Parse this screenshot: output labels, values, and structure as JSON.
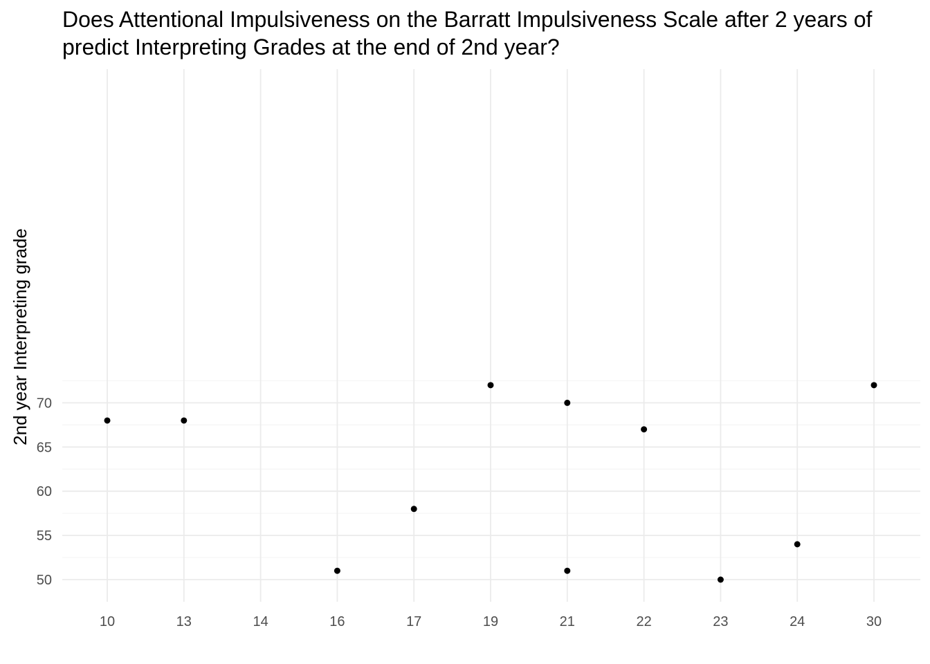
{
  "chart_data": {
    "type": "scatter",
    "title_lines": [
      "Does Attentional Impulsiveness on the Barratt Impulsiveness Scale after 2 years of",
      "predict Interpreting Grades at the end of 2nd year?"
    ],
    "xlabel": "",
    "ylabel": "2nd year Interpreting grade",
    "x_axis_kind": "categorical",
    "categories": [
      "10",
      "13",
      "14",
      "16",
      "17",
      "19",
      "21",
      "22",
      "23",
      "24",
      "30"
    ],
    "yticks": [
      50,
      55,
      60,
      65,
      70
    ],
    "ylim": [
      48.9,
      73.1
    ],
    "grid": true,
    "points": [
      {
        "x": "10",
        "y": 68
      },
      {
        "x": "13",
        "y": 68
      },
      {
        "x": "16",
        "y": 51
      },
      {
        "x": "17",
        "y": 58
      },
      {
        "x": "19",
        "y": 72
      },
      {
        "x": "21",
        "y": 70
      },
      {
        "x": "21",
        "y": 51
      },
      {
        "x": "22",
        "y": 67
      },
      {
        "x": "23",
        "y": 50
      },
      {
        "x": "24",
        "y": 54
      },
      {
        "x": "30",
        "y": 72
      }
    ],
    "colors": {
      "point": "#000000",
      "grid_major": "#ebebeb",
      "grid_minor": "#f5f5f5",
      "tick_text": "#4d4d4d"
    }
  }
}
